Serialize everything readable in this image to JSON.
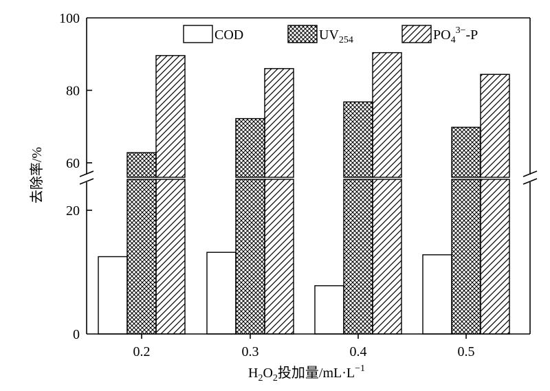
{
  "chart_data": {
    "type": "bar",
    "title": "",
    "xlabel": "H2O2投加量/mL·L−1",
    "ylabel": "去除率/%",
    "xlabel_parts": {
      "pre": "H",
      "sub1": "2",
      "mid": "O",
      "sub2": "2",
      "post": "投加量/mL·L",
      "sup": "−1"
    },
    "categories": [
      "0.2",
      "0.3",
      "0.4",
      "0.5"
    ],
    "series": [
      {
        "name": "COD",
        "legend": {
          "main": "COD",
          "sub": "",
          "sup": "",
          "tail": ""
        },
        "pattern": "none",
        "values": [
          12.5,
          13.2,
          7.8,
          12.8
        ]
      },
      {
        "name": "UV254",
        "legend": {
          "main": "UV",
          "sub": "254",
          "sup": "",
          "tail": ""
        },
        "pattern": "crosshatch",
        "values": [
          62.8,
          72.2,
          76.8,
          69.8
        ]
      },
      {
        "name": "PO43−-P",
        "legend": {
          "main": "PO",
          "sub": "4",
          "sup": "3−",
          "tail": "-P"
        },
        "pattern": "diagonal",
        "values": [
          89.6,
          86.0,
          90.4,
          84.4
        ]
      }
    ],
    "axis_break": {
      "lower_range": [
        0,
        25
      ],
      "upper_range": [
        56,
        100
      ]
    },
    "y_ticks": [
      {
        "value": 0,
        "label": "0"
      },
      {
        "value": 20,
        "label": "20"
      },
      {
        "value": 60,
        "label": "60"
      },
      {
        "value": 80,
        "label": "80"
      },
      {
        "value": 100,
        "label": "100"
      }
    ],
    "legend_position": "top",
    "grid": false
  }
}
